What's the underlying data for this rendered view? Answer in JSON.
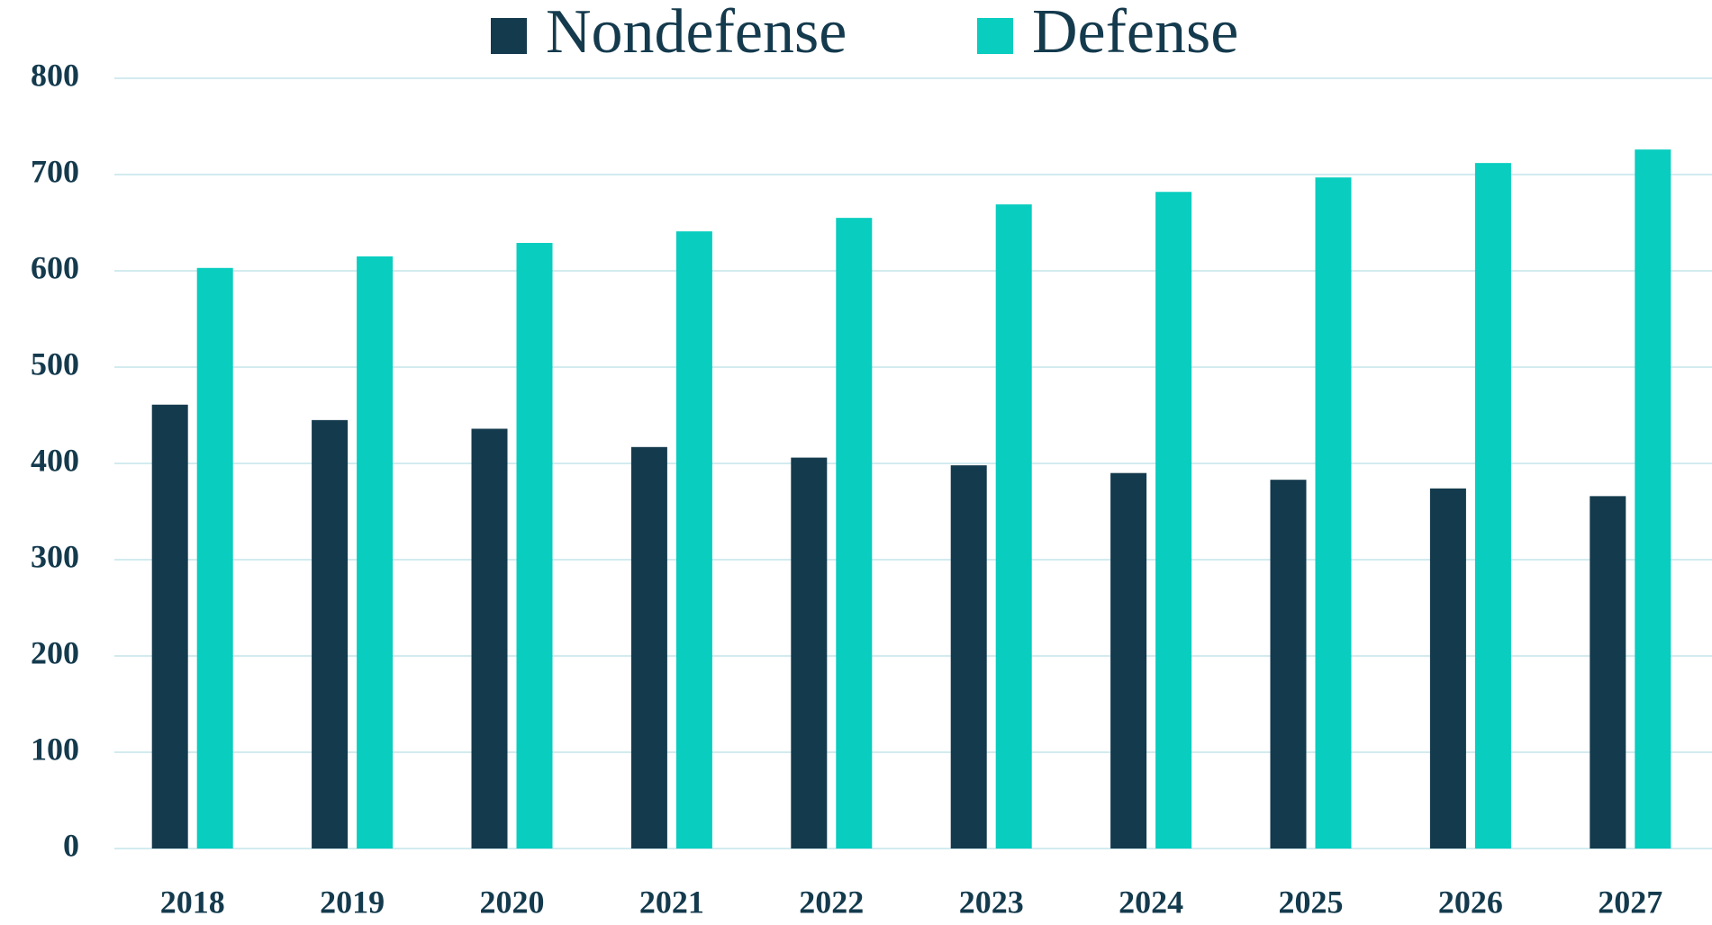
{
  "chart_data": {
    "type": "bar",
    "categories": [
      "2018",
      "2019",
      "2020",
      "2021",
      "2022",
      "2023",
      "2024",
      "2025",
      "2026",
      "2027"
    ],
    "series": [
      {
        "name": "Nondefense",
        "color": "#143a4d",
        "values": [
          461,
          445,
          436,
          417,
          406,
          398,
          390,
          383,
          374,
          366
        ]
      },
      {
        "name": "Defense",
        "color": "#08cdbf",
        "values": [
          603,
          615,
          629,
          641,
          655,
          669,
          682,
          697,
          712,
          726
        ]
      }
    ],
    "ylim": [
      0,
      800
    ],
    "yticks": [
      0,
      100,
      200,
      300,
      400,
      500,
      600,
      700,
      800
    ],
    "grid": true,
    "legend": "top"
  }
}
